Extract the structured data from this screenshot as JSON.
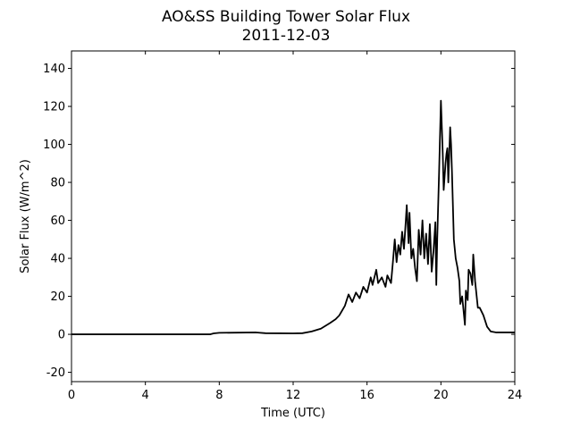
{
  "chart_data": {
    "type": "line",
    "title": "AO&SS Building Tower Solar Flux",
    "subtitle": "2011-12-03",
    "x_label": "Time (UTC)",
    "y_label": "Solar Flux (W/m^2)",
    "color": "#000000",
    "x": [
      0,
      7.5,
      7.7,
      8,
      10,
      10.5,
      12,
      12.5,
      13,
      13.5,
      14,
      14.3,
      14.5,
      14.8,
      15,
      15.2,
      15.4,
      15.6,
      15.8,
      16,
      16.2,
      16.3,
      16.5,
      16.6,
      16.8,
      17,
      17.1,
      17.3,
      17.4,
      17.5,
      17.6,
      17.7,
      17.8,
      17.9,
      18,
      18.1,
      18.15,
      18.25,
      18.3,
      18.4,
      18.5,
      18.6,
      18.7,
      18.8,
      18.9,
      19,
      19.1,
      19.2,
      19.3,
      19.4,
      19.5,
      19.6,
      19.7,
      19.75,
      19.8,
      19.9,
      20,
      20.1,
      20.15,
      20.25,
      20.3,
      20.35,
      20.4,
      20.5,
      20.55,
      20.6,
      20.7,
      20.8,
      20.9,
      21,
      21.05,
      21.15,
      21.25,
      21.3,
      21.35,
      21.45,
      21.5,
      21.6,
      21.7,
      21.75,
      21.85,
      22,
      22.1,
      22.3,
      22.5,
      22.7,
      23,
      24
    ],
    "values": [
      0,
      0,
      0.5,
      0.8,
      1,
      0.6,
      0.5,
      0.6,
      1.5,
      3,
      6,
      8,
      10,
      15,
      21,
      17,
      22,
      19,
      25,
      22,
      30,
      26,
      34,
      27,
      30,
      25,
      31,
      27,
      38,
      50,
      38,
      47,
      42,
      54,
      45,
      60,
      68,
      48,
      64,
      40,
      45,
      35,
      28,
      55,
      42,
      60,
      40,
      53,
      37,
      58,
      33,
      44,
      59,
      26,
      50,
      85,
      123,
      95,
      76,
      90,
      95,
      98,
      80,
      109,
      100,
      85,
      50,
      40,
      35,
      28,
      16,
      20,
      10,
      5,
      23,
      18,
      34,
      32,
      26,
      42,
      28,
      14,
      14,
      10,
      4,
      1.5,
      1,
      1
    ],
    "xlim": [
      0,
      24
    ],
    "xticks": [
      0,
      4,
      8,
      12,
      16,
      20,
      24
    ],
    "ylim": [
      -24.9,
      149.2
    ],
    "yticks": [
      -20,
      0,
      20,
      40,
      60,
      80,
      100,
      120,
      140
    ]
  }
}
